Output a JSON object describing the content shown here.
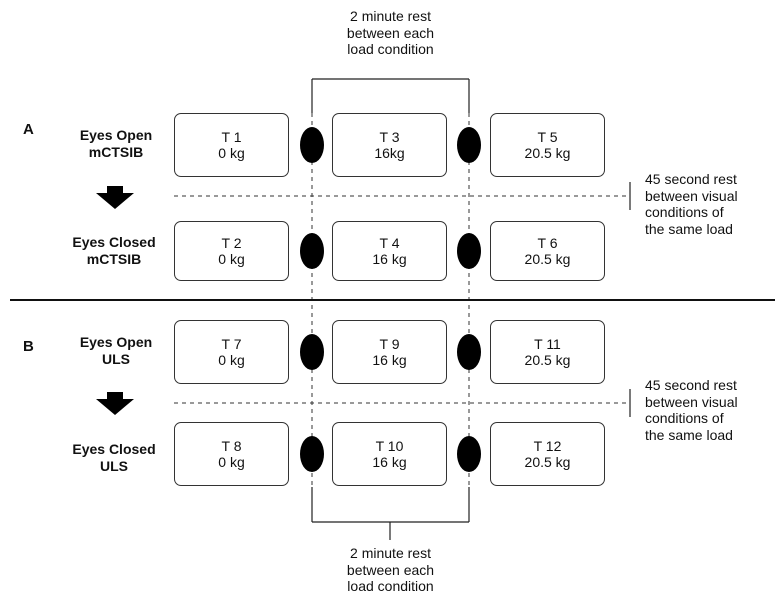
{
  "top_note": "2 minute rest\nbetween each\nload condition",
  "bottom_note": "2 minute rest\nbetween each\nload condition",
  "side_note_a": "45 second rest\nbetween visual\nconditions of\nthe same load",
  "side_note_b": "45 second rest\nbetween visual\nconditions of\nthe same load",
  "sections": [
    {
      "label": "A",
      "rows": [
        {
          "title": "Eyes Open\nmCTSIB",
          "cells": [
            {
              "id": "T 1",
              "load": "0 kg"
            },
            {
              "id": "T 3",
              "load": "16kg"
            },
            {
              "id": "T 5",
              "load": "20.5 kg"
            }
          ]
        },
        {
          "title": "Eyes Closed\nmCTSIB",
          "cells": [
            {
              "id": "T 2",
              "load": "0 kg"
            },
            {
              "id": "T 4",
              "load": "16 kg"
            },
            {
              "id": "T 6",
              "load": "20.5 kg"
            }
          ]
        }
      ]
    },
    {
      "label": "B",
      "rows": [
        {
          "title": "Eyes Open\nULS",
          "cells": [
            {
              "id": "T 7",
              "load": "0 kg"
            },
            {
              "id": "T 9",
              "load": "16 kg"
            },
            {
              "id": "T 11",
              "load": "20.5 kg"
            }
          ]
        },
        {
          "title": "Eyes Closed\nULS",
          "cells": [
            {
              "id": "T 8",
              "load": "0 kg"
            },
            {
              "id": "T 10",
              "load": "16 kg"
            },
            {
              "id": "T 12",
              "load": "20.5 kg"
            }
          ]
        }
      ]
    }
  ]
}
